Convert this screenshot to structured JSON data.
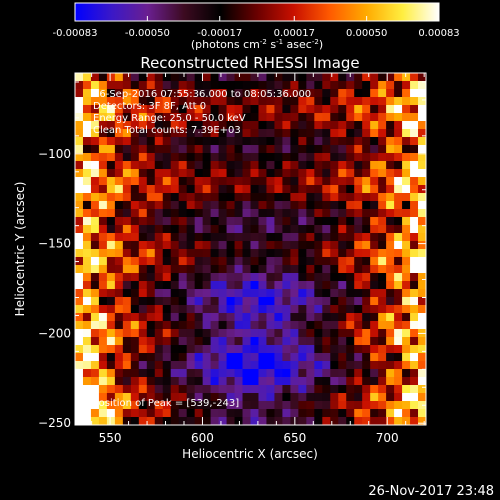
{
  "chart_data": {
    "type": "heatmap",
    "colorbar": {
      "ticks": [
        "-0.00083",
        "-0.00050",
        "-0.00017",
        "0.00017",
        "0.00050",
        "0.00083"
      ],
      "range": [
        -0.00083,
        0.00083
      ],
      "unit_main": "(photons cm",
      "unit_exp1": "-2",
      "unit_mid": " s",
      "unit_exp2": "-1",
      "unit_mid2": " asec",
      "unit_exp3": "-2",
      "unit_end": ")",
      "colors": [
        "#0000ff",
        "#3a18c8",
        "#6a1f90",
        "#3c0a20",
        "#000000",
        "#6a0000",
        "#c81000",
        "#ff5a00",
        "#ffaa00",
        "#ffee40",
        "#ffffff"
      ]
    },
    "title": "Reconstructed RHESSI Image",
    "xlabel": "Heliocentric X (arcsec)",
    "ylabel": "Heliocentric Y (arcsec)",
    "xlim": [
      531,
      721
    ],
    "ylim": [
      -251,
      -55
    ],
    "x_ticks": [
      550,
      600,
      650,
      700
    ],
    "y_ticks": [
      -100,
      -150,
      -200,
      -250
    ],
    "annotations": [
      "26-Sep-2016 07:55:36.000 to 08:05:36.000",
      "Detectors: 3F 8F, Att 0",
      "Energy Range: 25.0 - 50.0 keV",
      "Clean     Total counts: 7.39E+03"
    ],
    "peak_label": "Position of Peak = [539,-243]",
    "peak": [
      539,
      -243
    ],
    "grid": false,
    "legend": "none"
  },
  "footer": {
    "timestamp": "26-Nov-2017 23:48"
  }
}
